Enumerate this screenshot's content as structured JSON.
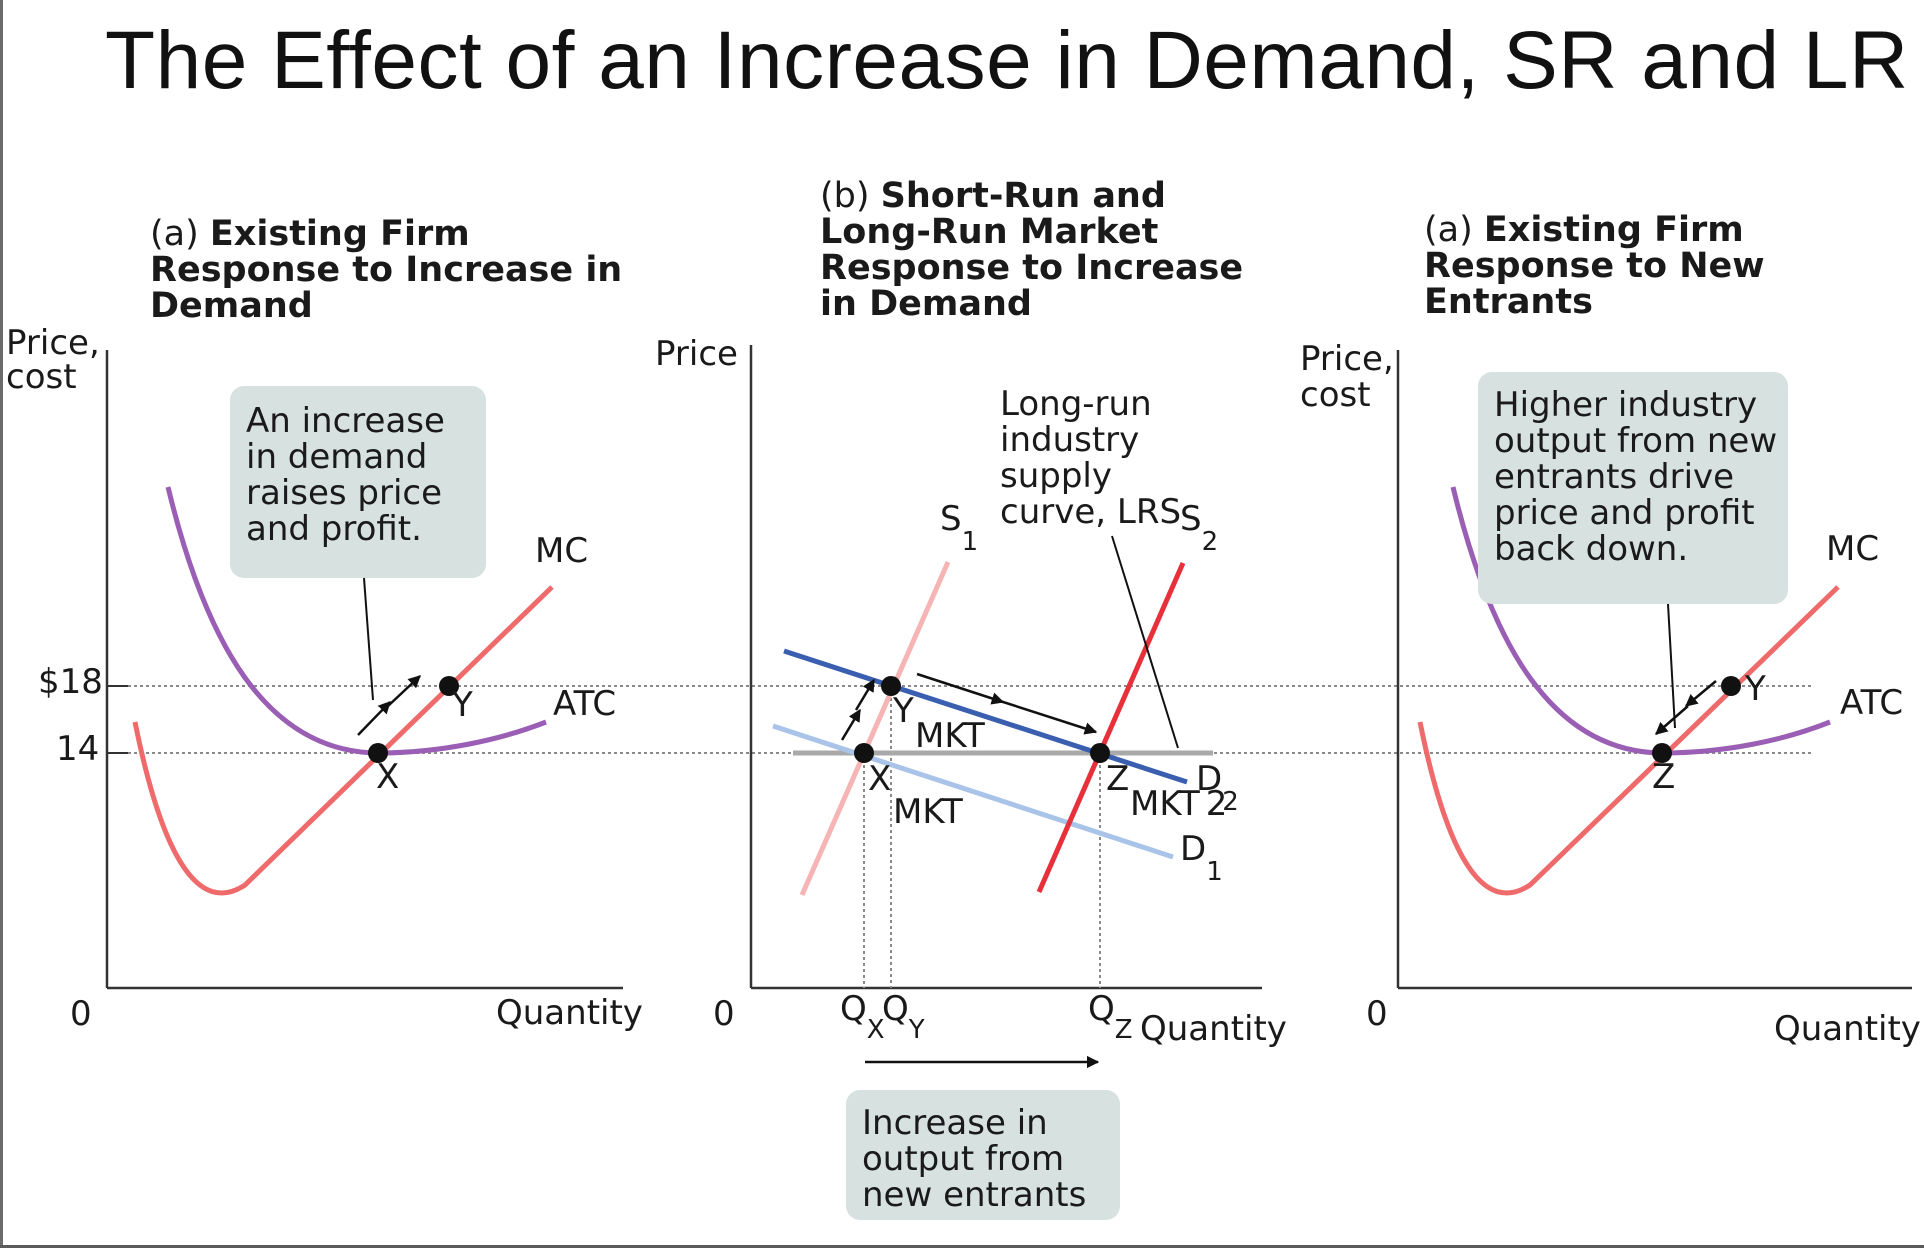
{
  "title": "The Effect of an Increase in Demand, SR and LR",
  "panels": {
    "a": {
      "title_prefix": "(a) ",
      "title_lines": [
        "Existing Firm",
        "Response to Increase in",
        "Demand"
      ],
      "ylabel_lines": [
        "Price,",
        "cost"
      ],
      "xlabel": "Quantity",
      "origin": "0",
      "callout_lines": [
        "An increase",
        "in demand",
        "raises price",
        "and profit."
      ],
      "labels": {
        "mc": "MC",
        "atc": "ATC",
        "x": "X",
        "y": "Y"
      }
    },
    "b": {
      "title_prefix": "(b) ",
      "title_lines": [
        "Short-Run and",
        "Long-Run Market",
        "Response to Increase",
        "in Demand"
      ],
      "ylabel": "Price",
      "xlabel": "Quantity",
      "origin": "0",
      "lrs_lines": [
        "Long-run",
        "industry",
        "supply",
        "curve, LRS"
      ],
      "callout_lines": [
        "Increase in",
        "output from",
        "new  entrants"
      ],
      "labels": {
        "s1": "S",
        "s1_sub": "1",
        "s2": "S",
        "s2_sub": "2",
        "d1": "D",
        "d1_sub": "1",
        "d2": "D",
        "d2_sub": "2",
        "y_mkt": "Y",
        "y_mkt_name": "MKT",
        "x_mkt": "X",
        "x_mkt_name": "MKT",
        "z_mkt": "Z",
        "z_mkt_name": "MKT",
        "z_mkt_sub": "2",
        "qx": "Q",
        "qx_sub": "X",
        "qy": "Q",
        "qy_sub": "Y",
        "qz": "Q",
        "qz_sub": "Z"
      }
    },
    "c": {
      "title_prefix": "(a) ",
      "title_lines": [
        "Existing Firm",
        "Response to New",
        "Entrants"
      ],
      "ylabel_lines": [
        "Price,",
        "cost"
      ],
      "xlabel": "Quantity",
      "origin": "0",
      "callout_lines": [
        "Higher industry",
        "output from new",
        "entrants drive",
        "price and profit",
        "back down."
      ],
      "labels": {
        "mc": "MC",
        "atc": "ATC",
        "y": "Y",
        "z": "Z"
      }
    }
  },
  "chart_data": [
    {
      "type": "line",
      "panel": "a",
      "title": "Existing Firm Response to Increase in Demand",
      "xlabel": "Quantity",
      "ylabel": "Price, cost",
      "y_ticks": [
        "$18",
        "14"
      ],
      "series": [
        {
          "name": "MC",
          "color": "#ef6b6b"
        },
        {
          "name": "ATC",
          "color": "#9a5fb5"
        }
      ],
      "points": [
        {
          "label": "X",
          "price": 14
        },
        {
          "label": "Y",
          "price": 18
        }
      ],
      "grid": false
    },
    {
      "type": "line",
      "panel": "b",
      "title": "Short-Run and Long-Run Market Response to Increase in Demand",
      "xlabel": "Quantity",
      "ylabel": "Price",
      "x_ticks": [
        "QX",
        "QY",
        "QZ"
      ],
      "series": [
        {
          "name": "S1",
          "color": "#f6b4b4"
        },
        {
          "name": "S2",
          "color": "#e8303a"
        },
        {
          "name": "D1",
          "color": "#a9c4e8"
        },
        {
          "name": "D2",
          "color": "#3a5fb0"
        },
        {
          "name": "LRS",
          "color": "#a9a9a9"
        }
      ],
      "points": [
        {
          "label": "XMKT",
          "price": 14,
          "quantity": "QX"
        },
        {
          "label": "YMKT",
          "price": 18,
          "quantity": "QY"
        },
        {
          "label": "ZMKT",
          "price": 14,
          "quantity": "QZ"
        }
      ],
      "grid": false
    },
    {
      "type": "line",
      "panel": "c",
      "title": "Existing Firm Response to New Entrants",
      "xlabel": "Quantity",
      "ylabel": "Price, cost",
      "series": [
        {
          "name": "MC",
          "color": "#ef6b6b"
        },
        {
          "name": "ATC",
          "color": "#9a5fb5"
        }
      ],
      "points": [
        {
          "label": "Y",
          "price": 18
        },
        {
          "label": "Z",
          "price": 14
        }
      ],
      "grid": false
    }
  ],
  "colors": {
    "mc": "#ef6b6b",
    "atc": "#9a5fb5",
    "s1": "#f6b4b4",
    "s2": "#e8303a",
    "d1": "#a9c4e8",
    "d2": "#3a5fb0",
    "lrs": "#a9a9a9",
    "callout_bg": "#d7e1df"
  }
}
